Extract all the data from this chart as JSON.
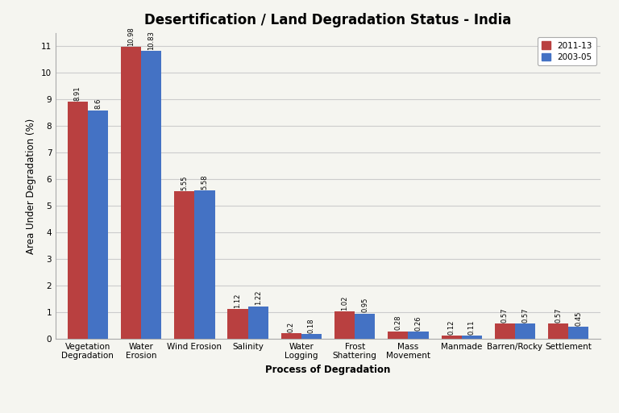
{
  "title": "Desertification / Land Degradation Status - India",
  "xlabel": "Process of Degradation",
  "ylabel": "Area Under Degradation (%)",
  "categories": [
    "Vegetation\nDegradation",
    "Water\nErosion",
    "Wind Erosion",
    "Salinity",
    "Water\nLogging",
    "Frost\nShattering",
    "Mass\nMovement",
    "Manmade",
    "Barren/Rocky",
    "Settlement"
  ],
  "series_2011_13": [
    8.91,
    10.98,
    5.55,
    1.12,
    0.2,
    1.02,
    0.28,
    0.12,
    0.57,
    0.57
  ],
  "series_2003_05": [
    8.6,
    10.83,
    5.58,
    1.22,
    0.18,
    0.95,
    0.26,
    0.11,
    0.57,
    0.45
  ],
  "color_2011_13": "#B94040",
  "color_2003_05": "#4472C4",
  "legend_labels": [
    "2011-13",
    "2003-05"
  ],
  "ylim": [
    0,
    11.5
  ],
  "yticks": [
    0,
    1,
    2,
    3,
    4,
    5,
    6,
    7,
    8,
    9,
    10,
    11
  ],
  "bar_width": 0.38,
  "background_color": "#F5F5F0",
  "plot_bg_color": "#F5F5F0",
  "grid_color": "#CCCCCC",
  "title_fontsize": 12,
  "label_fontsize": 8.5,
  "tick_fontsize": 7.5,
  "value_fontsize": 6.0
}
